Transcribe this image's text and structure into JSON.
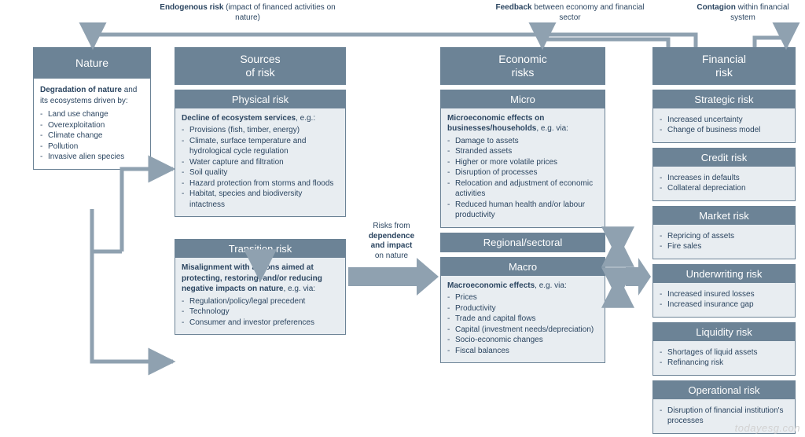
{
  "type": "flowchart",
  "background_color": "#ffffff",
  "box_fill": "#e8edf1",
  "header_fill": "#6c8396",
  "text_color": "#2b4560",
  "arrow_color": "#8fa1b0",
  "font_family": "Arial",
  "fontsize_header": 14,
  "fontsize_subheader": 13,
  "fontsize_body": 10,
  "top_annotations": {
    "endogenous": {
      "bold": "Endogenous risk",
      "rest": " (impact of\nfinanced activities on nature)"
    },
    "feedback": {
      "bold": "Feedback",
      "rest": " between economy\nand financial sector"
    },
    "contagion": {
      "bold": "Contagion",
      "rest": " within\nfinancial system"
    }
  },
  "mid_annotation": {
    "line1": "Risks from",
    "bold": "dependence\nand impact",
    "line3": "on nature"
  },
  "columns": {
    "nature": {
      "header": "Nature",
      "intro_bold": "Degradation of nature",
      "intro_rest": "and its ecosystems driven by:",
      "items": [
        "Land use change",
        "Overexploitation",
        "Climate change",
        "Pollution",
        "Invasive alien species"
      ]
    },
    "sources": {
      "header": "Sources\nof risk",
      "physical": {
        "title": "Physical risk",
        "intro_bold": "Decline of ecosystem services",
        "intro_rest": ", e.g.:",
        "items": [
          "Provisions (fish, timber, energy)",
          "Climate, surface temperature and hydrological cycle regulation",
          "Water capture and filtration",
          "Soil quality",
          "Hazard protection from storms and floods",
          "Habitat, species and biodiversity intactness"
        ]
      },
      "transition": {
        "title": "Transition risk",
        "intro_bold": "Misalignment with actions aimed at protecting, restoring, and/or reducing negative impacts on nature",
        "intro_rest": ", e.g. via:",
        "items": [
          "Regulation/policy/legal precedent",
          "Technology",
          "Consumer and investor preferences"
        ]
      }
    },
    "economic": {
      "header": "Economic\nrisks",
      "micro": {
        "title": "Micro",
        "intro_bold": "Microeconomic effects on businesses/households",
        "intro_rest": ", e.g. via:",
        "items": [
          "Damage to assets",
          "Stranded assets",
          "Higher or more volatile prices",
          "Disruption of processes",
          "Relocation and adjustment of economic activities",
          "Reduced human health and/or labour productivity"
        ]
      },
      "regional_label": "Regional/sectoral",
      "macro": {
        "title": "Macro",
        "intro_bold": "Macroeconomic effects",
        "intro_rest": ", e.g. via:",
        "items": [
          "Prices",
          "Productivity",
          "Trade and capital flows",
          "Capital (investment needs/depreciation)",
          "Socio-economic changes",
          "Fiscal balances"
        ]
      }
    },
    "financial": {
      "header": "Financial\nrisk",
      "risks": [
        {
          "title": "Strategic risk",
          "items": [
            "Increased uncertainty",
            "Change of business model"
          ]
        },
        {
          "title": "Credit risk",
          "items": [
            "Increases in defaults",
            "Collateral depreciation"
          ]
        },
        {
          "title": "Market risk",
          "items": [
            "Repricing of assets",
            "Fire sales"
          ]
        },
        {
          "title": "Underwriting risk",
          "items": [
            "Increased insured losses",
            "Increased insurance gap"
          ]
        },
        {
          "title": "Liquidity risk",
          "items": [
            "Shortages of liquid assets",
            "Refinancing risk"
          ]
        },
        {
          "title": "Operational risk",
          "items": [
            "Disruption of financial institution's processes"
          ]
        }
      ]
    }
  },
  "watermark": "todayesg.con",
  "layout": {
    "col_x": {
      "nature": 42,
      "sources": 222,
      "economic": 560,
      "financial": 830
    },
    "col_w": {
      "nature": 150,
      "sources": 218,
      "economic": 210,
      "financial": 182
    },
    "gap_between_source_economic": 120
  },
  "arrows": [
    {
      "desc": "nature -> physical (right)"
    },
    {
      "desc": "nature -> transition (right-down)"
    },
    {
      "desc": "physical -> transition (down)"
    },
    {
      "desc": "sources -> economic (big right)"
    },
    {
      "desc": "micro <-> macro via regional (up/down pair)"
    },
    {
      "desc": "economic -> financial (big right)"
    },
    {
      "desc": "feedback financial -> economic (top)"
    },
    {
      "desc": "contagion financial self-loop (top)"
    },
    {
      "desc": "endogenous financial -> nature (top long)"
    }
  ]
}
